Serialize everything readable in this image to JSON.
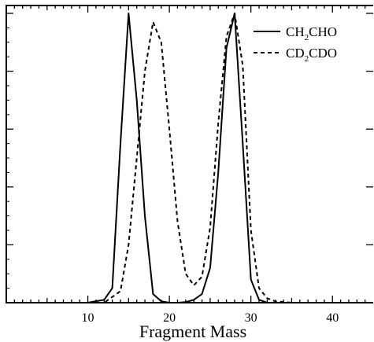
{
  "chart_data": {
    "type": "line",
    "title": "",
    "xlabel": "Fragment Mass",
    "ylabel": "",
    "xlim": [
      0,
      45
    ],
    "ylim": [
      0,
      1
    ],
    "x_ticks": [
      10,
      20,
      30,
      40
    ],
    "x_tick_labels": [
      "10",
      "20",
      "30",
      "40"
    ],
    "y_major_ticks": [
      0.2,
      0.4,
      0.6,
      0.8,
      1.0
    ],
    "grid": false,
    "legend_position": "top-right",
    "series": [
      {
        "name": "CH2CHO",
        "legend": {
          "a": "CH",
          "sub": "2",
          "b": "CHO"
        },
        "style": "solid",
        "points": [
          [
            0,
            0
          ],
          [
            10,
            0
          ],
          [
            12,
            0.01
          ],
          [
            13,
            0.05
          ],
          [
            14,
            0.55
          ],
          [
            15,
            1.0
          ],
          [
            16,
            0.7
          ],
          [
            17,
            0.3
          ],
          [
            18,
            0.03
          ],
          [
            19,
            0.005
          ],
          [
            20,
            0
          ],
          [
            21,
            0
          ],
          [
            22,
            0.002
          ],
          [
            23,
            0.01
          ],
          [
            24,
            0.03
          ],
          [
            25,
            0.12
          ],
          [
            26,
            0.45
          ],
          [
            27,
            0.88
          ],
          [
            28,
            1.0
          ],
          [
            29,
            0.55
          ],
          [
            30,
            0.08
          ],
          [
            31,
            0.01
          ],
          [
            32,
            0
          ],
          [
            45,
            0
          ]
        ]
      },
      {
        "name": "CD2CDO",
        "legend": {
          "a": "CD",
          "sub": "2",
          "b": "CDO"
        },
        "style": "dashed",
        "points": [
          [
            0,
            0
          ],
          [
            12,
            0
          ],
          [
            14,
            0.04
          ],
          [
            15,
            0.2
          ],
          [
            16,
            0.5
          ],
          [
            17,
            0.8
          ],
          [
            18,
            0.97
          ],
          [
            19,
            0.9
          ],
          [
            20,
            0.6
          ],
          [
            21,
            0.28
          ],
          [
            22,
            0.1
          ],
          [
            23,
            0.06
          ],
          [
            24,
            0.09
          ],
          [
            25,
            0.26
          ],
          [
            26,
            0.62
          ],
          [
            27,
            0.92
          ],
          [
            28,
            1.0
          ],
          [
            29,
            0.82
          ],
          [
            30,
            0.25
          ],
          [
            31,
            0.05
          ],
          [
            32,
            0.015
          ],
          [
            33,
            0.005
          ],
          [
            35,
            0
          ],
          [
            45,
            0
          ]
        ]
      }
    ]
  }
}
